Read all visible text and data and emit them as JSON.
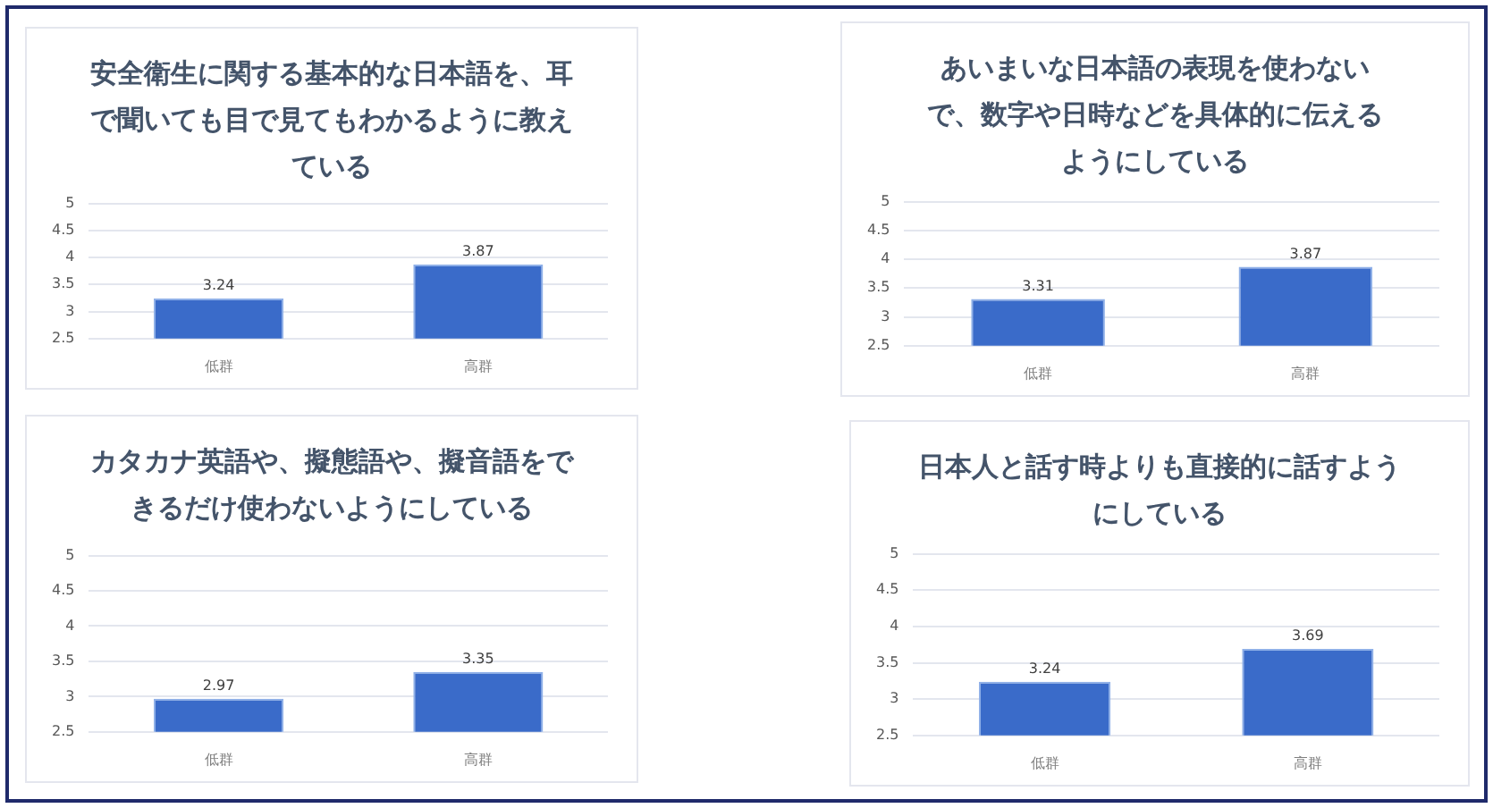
{
  "chart_data": [
    {
      "type": "bar",
      "title": "安全衛生に関する基本的な日本語を、耳で聞いても目で見てもわかるように教えている",
      "categories": [
        "低群",
        "高群"
      ],
      "values": [
        3.24,
        3.87
      ],
      "color": "#3a6bc9",
      "ylim": [
        2.5,
        5
      ],
      "yticks": [
        2.5,
        3,
        3.5,
        4,
        4.5,
        5
      ],
      "grid": "y",
      "data_labels": true
    },
    {
      "type": "bar",
      "title": "あいまいな日本語の表現を使わないで、数字や日時などを具体的に伝えるようにしている",
      "categories": [
        "低群",
        "高群"
      ],
      "values": [
        3.31,
        3.87
      ],
      "color": "#3a6bc9",
      "ylim": [
        2.5,
        5
      ],
      "yticks": [
        2.5,
        3,
        3.5,
        4,
        4.5,
        5
      ],
      "grid": "y",
      "data_labels": true
    },
    {
      "type": "bar",
      "title": "カタカナ英語や、擬態語や、擬音語をできるだけ使わないようにしている",
      "categories": [
        "低群",
        "高群"
      ],
      "values": [
        2.97,
        3.35
      ],
      "color": "#3a6bc9",
      "ylim": [
        2.5,
        5
      ],
      "yticks": [
        2.5,
        3,
        3.5,
        4,
        4.5,
        5
      ],
      "grid": "y",
      "data_labels": true
    },
    {
      "type": "bar",
      "title": "日本人と話す時よりも直接的に話すようにしている",
      "categories": [
        "低群",
        "高群"
      ],
      "values": [
        3.24,
        3.69
      ],
      "color": "#3a6bc9",
      "ylim": [
        2.5,
        5
      ],
      "yticks": [
        2.5,
        3,
        3.5,
        4,
        4.5,
        5
      ],
      "grid": "y",
      "data_labels": true
    }
  ]
}
